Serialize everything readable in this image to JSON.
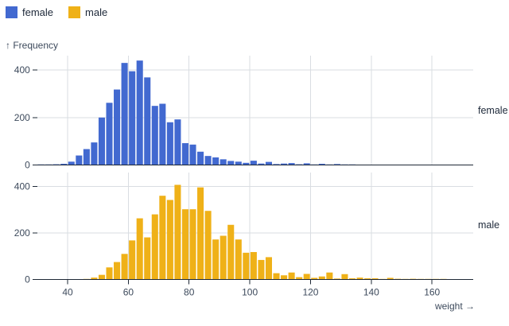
{
  "legend": {
    "items": [
      {
        "label": "female",
        "color": "#4269d0"
      },
      {
        "label": "male",
        "color": "#efb118"
      }
    ]
  },
  "axes": {
    "y_label": "↑ Frequency",
    "x_label": "weight →"
  },
  "chart_data": {
    "type": "bar",
    "kind": "faceted histogram (frequency of athlete weight, faceted by sex)",
    "xlabel": "weight",
    "ylabel": "Frequency",
    "bin_width": 2.5,
    "x_domain": [
      30,
      173
    ],
    "x_ticks": [
      40,
      60,
      80,
      100,
      120,
      140,
      160
    ],
    "y_ticks": [
      0,
      200,
      400
    ],
    "y_domain": [
      0,
      460
    ],
    "grid": true,
    "legend_position": "top-left",
    "facets": [
      {
        "label": "female",
        "color": "#4269d0",
        "bins": [
          [
            30,
            1
          ],
          [
            32.5,
            2
          ],
          [
            35,
            3
          ],
          [
            37.5,
            5
          ],
          [
            40,
            14
          ],
          [
            42.5,
            40
          ],
          [
            45,
            67
          ],
          [
            47.5,
            95
          ],
          [
            50,
            200
          ],
          [
            52.5,
            262
          ],
          [
            55,
            318
          ],
          [
            57.5,
            430
          ],
          [
            60,
            395
          ],
          [
            62.5,
            440
          ],
          [
            65,
            369
          ],
          [
            67.5,
            249
          ],
          [
            70,
            258
          ],
          [
            72.5,
            180
          ],
          [
            75,
            192
          ],
          [
            77.5,
            92
          ],
          [
            80,
            86
          ],
          [
            82.5,
            56
          ],
          [
            85,
            38
          ],
          [
            87.5,
            32
          ],
          [
            90,
            24
          ],
          [
            92.5,
            17
          ],
          [
            95,
            14
          ],
          [
            97.5,
            9
          ],
          [
            100,
            18
          ],
          [
            102.5,
            6
          ],
          [
            105,
            13
          ],
          [
            107.5,
            4
          ],
          [
            110,
            6
          ],
          [
            112.5,
            8
          ],
          [
            115,
            3
          ],
          [
            117.5,
            7
          ],
          [
            120,
            2
          ],
          [
            122.5,
            5
          ],
          [
            125,
            2
          ],
          [
            127.5,
            4
          ],
          [
            130,
            1
          ],
          [
            132.5,
            1
          ]
        ]
      },
      {
        "label": "male",
        "color": "#efb118",
        "bins": [
          [
            45,
            2
          ],
          [
            47.5,
            8
          ],
          [
            50,
            20
          ],
          [
            52.5,
            52
          ],
          [
            55,
            75
          ],
          [
            57.5,
            110
          ],
          [
            60,
            168
          ],
          [
            62.5,
            263
          ],
          [
            65,
            181
          ],
          [
            67.5,
            280
          ],
          [
            70,
            360
          ],
          [
            72.5,
            342
          ],
          [
            75,
            407
          ],
          [
            77.5,
            302
          ],
          [
            80,
            302
          ],
          [
            82.5,
            396
          ],
          [
            85,
            295
          ],
          [
            87.5,
            172
          ],
          [
            90,
            188
          ],
          [
            92.5,
            235
          ],
          [
            95,
            172
          ],
          [
            97.5,
            115
          ],
          [
            100,
            118
          ],
          [
            102.5,
            84
          ],
          [
            105,
            96
          ],
          [
            107.5,
            27
          ],
          [
            110,
            18
          ],
          [
            112.5,
            30
          ],
          [
            115,
            10
          ],
          [
            117.5,
            24
          ],
          [
            120,
            7
          ],
          [
            122.5,
            13
          ],
          [
            125,
            30
          ],
          [
            127.5,
            4
          ],
          [
            130,
            23
          ],
          [
            132.5,
            5
          ],
          [
            135,
            8
          ],
          [
            137.5,
            5
          ],
          [
            140,
            5
          ],
          [
            142.5,
            2
          ],
          [
            145,
            7
          ],
          [
            147.5,
            3
          ],
          [
            150,
            1
          ],
          [
            152.5,
            3
          ],
          [
            155,
            1
          ],
          [
            157.5,
            1
          ],
          [
            160,
            1
          ],
          [
            162.5,
            1
          ]
        ]
      }
    ],
    "colors": {
      "grid": "#d9dde2",
      "axis_line": "#1e2836",
      "tick_text": "#3d4a5c"
    }
  }
}
